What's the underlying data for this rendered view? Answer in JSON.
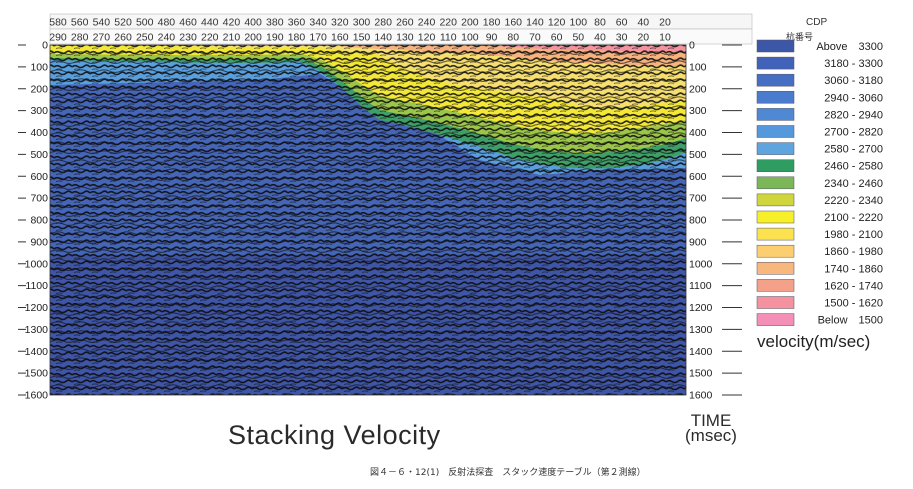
{
  "chart_data": {
    "type": "heatmap",
    "title": "Stacking Velocity",
    "caption": "図４－６・12(1)　反射法探査　スタック速度テーブル（第２測線）",
    "x_axis_top": {
      "name": "CDP",
      "ticks": [
        "580",
        "560",
        "540",
        "520",
        "500",
        "480",
        "460",
        "440",
        "420",
        "400",
        "380",
        "360",
        "340",
        "320",
        "300",
        "280",
        "260",
        "240",
        "220",
        "200",
        "180",
        "160",
        "140",
        "120",
        "100",
        "80",
        "60",
        "40",
        "20"
      ]
    },
    "x_axis_second": {
      "name": "杭番号",
      "ticks": [
        "290",
        "280",
        "270",
        "260",
        "250",
        "240",
        "230",
        "220",
        "210",
        "200",
        "190",
        "180",
        "170",
        "160",
        "150",
        "140",
        "130",
        "120",
        "110",
        "100",
        "90",
        "80",
        "70",
        "60",
        "50",
        "40",
        "30",
        "20",
        "10"
      ]
    },
    "y_axis": {
      "label": "TIME (msec)",
      "label_line1": "TIME",
      "label_line2": "(msec)",
      "ylim": [
        0,
        1600
      ],
      "left_ticks": [
        "0",
        "100",
        "200",
        "300",
        "400",
        "500",
        "600",
        "700",
        "800",
        "900",
        "1000",
        "1100",
        "1200",
        "1300",
        "1400",
        "1500",
        "1600"
      ],
      "right_ticks": [
        "0",
        "100",
        "200",
        "300",
        "400",
        "500",
        "600",
        "700",
        "800",
        "900",
        "1000",
        "1100",
        "1200",
        "1300",
        "1400",
        "1500",
        "1600"
      ]
    },
    "legend": {
      "title": "velocity(m/sec)",
      "placement": "right",
      "entries": [
        {
          "label": "Above　3300",
          "color": "#3d57a8"
        },
        {
          "label": "3180 - 3300",
          "color": "#4162b8"
        },
        {
          "label": "3060 - 3180",
          "color": "#466fc4"
        },
        {
          "label": "2940 - 3060",
          "color": "#4a7bcc"
        },
        {
          "label": "2820 - 2940",
          "color": "#4f88d3"
        },
        {
          "label": "2700 - 2820",
          "color": "#5598db"
        },
        {
          "label": "2580 - 2700",
          "color": "#5ea5e0"
        },
        {
          "label": "2460 - 2580",
          "color": "#2f9c62"
        },
        {
          "label": "2340 - 2460",
          "color": "#7cb757"
        },
        {
          "label": "2220 - 2340",
          "color": "#cfd53b"
        },
        {
          "label": "2100 - 2220",
          "color": "#f7ef2a"
        },
        {
          "label": "1980 - 2100",
          "color": "#fbe24e"
        },
        {
          "label": "1860 - 1980",
          "color": "#fbcf70"
        },
        {
          "label": "1740 - 1860",
          "color": "#f7b77d"
        },
        {
          "label": "1620 - 1740",
          "color": "#f5a089"
        },
        {
          "label": "1500 - 1620",
          "color": "#f592a0"
        },
        {
          "label": "Below　1500",
          "color": "#f48fb8"
        }
      ]
    },
    "boundaries_note_values": {
      "cdp": [
        580,
        520,
        440,
        360,
        320,
        280,
        200,
        140,
        100,
        60,
        20
      ],
      "green_top_msec": [
        60,
        70,
        80,
        60,
        90,
        280,
        320,
        390,
        410,
        380,
        390
      ],
      "blue_top_msec": [
        180,
        180,
        180,
        150,
        230,
        380,
        450,
        570,
        580,
        560,
        550
      ]
    }
  }
}
